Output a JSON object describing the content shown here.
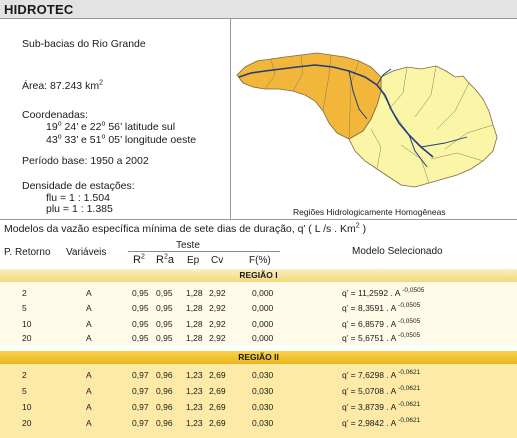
{
  "header": {
    "title": "HIDROTEC"
  },
  "info": {
    "basin": "Sub-bacias do Rio Grande",
    "area_label": "Área:",
    "area_value": "87.243 km",
    "area_exp": "2",
    "coords_label": "Coordenadas:",
    "lat_deg1": "19",
    "lat_min1": " 24’  e 22",
    "lat_min2": " 56’  latitude sul",
    "lon_deg1": "43",
    "lon_min1": " 33’  e 51",
    "lon_min2": " 05’  longitude oeste",
    "deg_sign": "o",
    "period_label": "Período base:",
    "period_value": "1950  a  2002",
    "density_label": "Densidade de estações:",
    "flu": "flu  =  1 : 1.504",
    "plu": "plu =  1 : 1.385"
  },
  "map": {
    "caption": "Regiões Hidrologicamente Homogêneas",
    "colors": {
      "region1": "#f2b63a",
      "region2": "#fbf5a8",
      "river": "#1f3f7a",
      "border": "#7a6a3a"
    }
  },
  "table": {
    "caption": "Modelos da vazão específica mínima de sete dias de duração, q’ ( L /s . Km",
    "caption_exp": "2",
    "caption_end": " )",
    "col_return": "P. Retorno",
    "col_vars": "Variáveis",
    "group_test": "Teste",
    "col_r2": "R",
    "col_r2_exp": "2",
    "col_r2a": "R",
    "col_r2a_exp": "2",
    "col_r2a_sub": "a",
    "col_ep": "Ep",
    "col_cv": "Cv",
    "col_f": "F(%)",
    "col_model": "Modelo Selecionado",
    "regions": [
      {
        "name": "REGIÃO I",
        "rows": [
          {
            "p": "2",
            "v": "A",
            "r2": "0,95",
            "r2a": "0,95",
            "ep": "1,28",
            "cv": "2,92",
            "f": "0,000",
            "model": "q’ = 11,2592 . A ",
            "exp": "-0,0505"
          },
          {
            "p": "5",
            "v": "A",
            "r2": "0,95",
            "r2a": "0,95",
            "ep": "1,28",
            "cv": "2,92",
            "f": "0,000",
            "model": "q’ = 8,3591 . A ",
            "exp": "-0,0505"
          },
          {
            "p": "10",
            "v": "A",
            "r2": "0,95",
            "r2a": "0,95",
            "ep": "1,28",
            "cv": "2,92",
            "f": "0,000",
            "model": "q’ = 6,8579 . A ",
            "exp": "-0,0505"
          },
          {
            "p": "20",
            "v": "A",
            "r2": "0,95",
            "r2a": "0,95",
            "ep": "1,28",
            "cv": "2,92",
            "f": "0,000",
            "model": "q’ = 5,6751 . A ",
            "exp": "-0,0505"
          }
        ]
      },
      {
        "name": "REGIÃO II",
        "rows": [
          {
            "p": "2",
            "v": "A",
            "r2": "0,97",
            "r2a": "0,96",
            "ep": "1,23",
            "cv": "2,69",
            "f": "0,030",
            "model": "q’ = 7,6298 . A ",
            "exp": "-0,0621"
          },
          {
            "p": "5",
            "v": "A",
            "r2": "0,97",
            "r2a": "0,96",
            "ep": "1,23",
            "cv": "2,69",
            "f": "0,030",
            "model": "q’ = 5,0708 . A ",
            "exp": "-0,0621"
          },
          {
            "p": "10",
            "v": "A",
            "r2": "0,97",
            "r2a": "0,96",
            "ep": "1,23",
            "cv": "2,69",
            "f": "0,030",
            "model": "q’ = 3,8739 . A ",
            "exp": "-0,0621"
          },
          {
            "p": "20",
            "v": "A",
            "r2": "0,97",
            "r2a": "0,96",
            "ep": "1,23",
            "cv": "2,69",
            "f": "0,030",
            "model": "q’ = 2,9842 . A ",
            "exp": "-0,0621"
          }
        ]
      }
    ]
  }
}
